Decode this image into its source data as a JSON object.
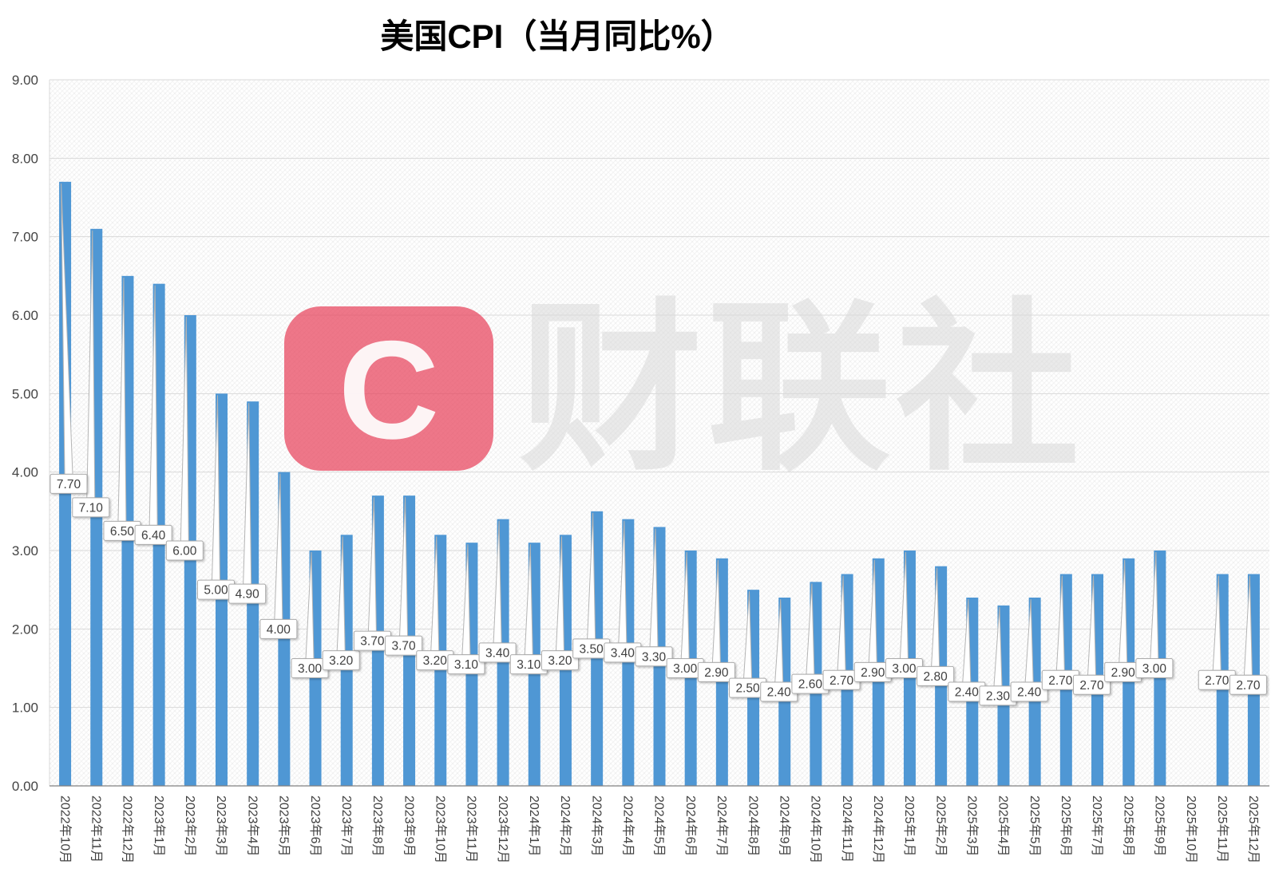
{
  "page": {
    "background": "#FFFFFF"
  },
  "chart_data": {
    "type": "bar",
    "title": "美国CPI（当月同比%）",
    "categories": [
      "2022年10月",
      "2022年11月",
      "2022年12月",
      "2023年1月",
      "2023年2月",
      "2023年3月",
      "2023年4月",
      "2023年5月",
      "2023年6月",
      "2023年7月",
      "2023年8月",
      "2023年9月",
      "2023年10月",
      "2023年11月",
      "2023年12月",
      "2024年1月",
      "2024年2月",
      "2024年3月",
      "2024年4月",
      "2024年5月",
      "2024年6月",
      "2024年7月",
      "2024年8月",
      "2024年9月",
      "2024年10月",
      "2024年11月",
      "2024年12月",
      "2025年1月",
      "2025年2月",
      "2025年3月",
      "2025年4月",
      "2025年5月",
      "2025年6月",
      "2025年7月",
      "2025年8月",
      "2025年9月",
      "2025年10月",
      "2025年11月",
      "2025年12月"
    ],
    "values": [
      7.7,
      7.1,
      6.5,
      6.4,
      6.0,
      5.0,
      4.9,
      4.0,
      3.0,
      3.2,
      3.7,
      3.7,
      3.2,
      3.1,
      3.4,
      3.1,
      3.2,
      3.5,
      3.4,
      3.3,
      3.0,
      2.9,
      2.5,
      2.4,
      2.6,
      2.7,
      2.9,
      3.0,
      2.8,
      2.4,
      2.3,
      2.4,
      2.7,
      2.7,
      2.9,
      3.0,
      null,
      2.7,
      2.7
    ],
    "data_labels": [
      "7.70",
      "7.10",
      "6.50",
      "6.40",
      "6.00",
      "5.00",
      "4.90",
      "4.00",
      "3.00",
      "3.20",
      "3.70",
      "3.70",
      "3.20",
      "3.10",
      "3.40",
      "3.10",
      "3.20",
      "3.50",
      "3.40",
      "3.30",
      "3.00",
      "2.90",
      "2.50",
      "2.40",
      "2.60",
      "2.70",
      "2.90",
      "3.00",
      "2.80",
      "2.40",
      "2.30",
      "2.40",
      "2.70",
      "2.70",
      "2.90",
      "3.00",
      null,
      "2.70",
      "2.70"
    ],
    "xlabel": "",
    "ylabel": "",
    "ylim": [
      0,
      9
    ],
    "ytick_step": 1,
    "ytick_labels": [
      "0.00",
      "1.00",
      "2.00",
      "3.00",
      "4.00",
      "5.00",
      "6.00",
      "7.00",
      "8.00",
      "9.00"
    ],
    "grid": true,
    "legend": false,
    "bar_color": "#4F97D4",
    "gridline_color": "#D9D9D9",
    "axis_color": "#808080",
    "tick_text_color": "#404040",
    "label_box": {
      "fill": "#FFFFFF",
      "border": "#ABABAB",
      "text_color": "#404040"
    }
  },
  "watermark": {
    "logo_letter": "C",
    "text": "财联社",
    "logo_color": "#E8435C"
  }
}
